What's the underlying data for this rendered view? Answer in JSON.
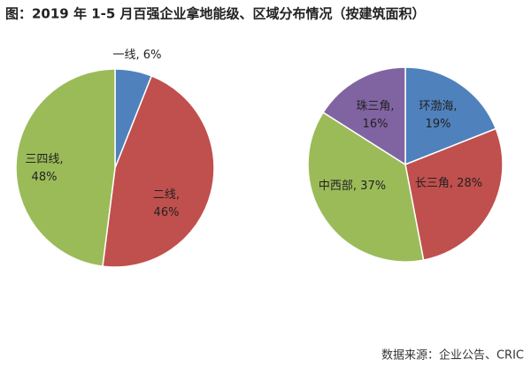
{
  "title": "图：2019 年 1-5 月百强企业拿地能级、区域分布情况（按建筑面积）",
  "source": "数据来源：企业公告、CRIC",
  "chart_data": [
    {
      "type": "pie",
      "values": [
        6,
        46,
        48
      ],
      "value_labels": [
        [
          "一线, 6%"
        ],
        [
          "二线,",
          "46%"
        ],
        [
          "三四线,",
          "48%"
        ]
      ],
      "colors": [
        "#4f81bd",
        "#c0504d",
        "#9bbb59"
      ]
    },
    {
      "type": "pie",
      "values": [
        19,
        28,
        37,
        16
      ],
      "value_labels": [
        [
          "环渤海,",
          "19%"
        ],
        [
          "长三角, 28%"
        ],
        [
          "中西部, 37%"
        ],
        [
          "珠三角,",
          "16%"
        ]
      ],
      "colors": [
        "#4f81bd",
        "#c0504d",
        "#9bbb59",
        "#8064a2"
      ]
    }
  ]
}
